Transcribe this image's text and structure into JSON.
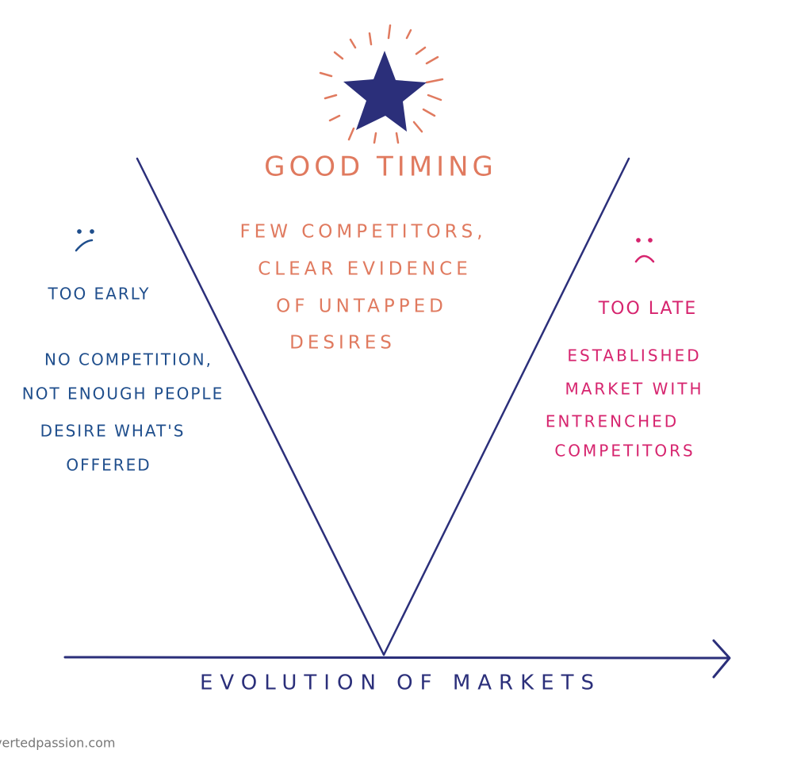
{
  "center": {
    "title": "GOOD TIMING",
    "lines": [
      "FEW COMPETITORS,",
      "CLEAR EVIDENCE",
      "OF UNTAPPED",
      "DESIRES"
    ]
  },
  "left": {
    "title": "TOO EARLY",
    "lines": [
      "NO COMPETITION,",
      "NOT ENOUGH PEOPLE",
      "DESIRE WHAT'S",
      "OFFERED"
    ]
  },
  "right": {
    "title": "TOO LATE",
    "lines": [
      "ESTABLISHED",
      "MARKET WITH",
      "ENTRENCHED",
      "COMPETITORS"
    ]
  },
  "axis_label": "EVOLUTION OF MARKETS",
  "watermark": "invertedpassion.com"
}
